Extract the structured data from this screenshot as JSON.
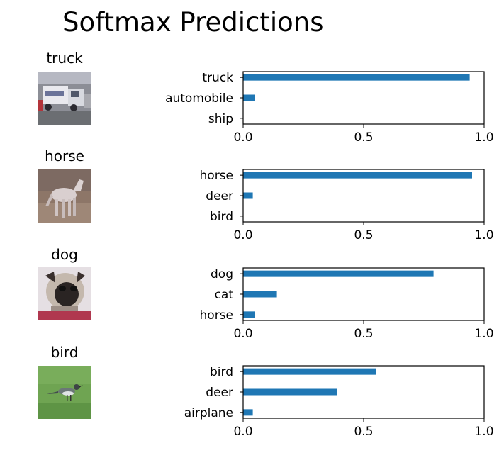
{
  "title": "Softmax Predictions",
  "colors": {
    "bar": "#1f77b4",
    "axis": "#000000"
  },
  "rows": [
    {
      "label": "truck",
      "image_icon": "truck-photo-thumbnail"
    },
    {
      "label": "horse",
      "image_icon": "horse-photo-thumbnail"
    },
    {
      "label": "dog",
      "image_icon": "dog-photo-thumbnail"
    },
    {
      "label": "bird",
      "image_icon": "bird-photo-thumbnail"
    }
  ],
  "chart_data": [
    {
      "type": "bar",
      "orientation": "horizontal",
      "categories": [
        "truck",
        "automobile",
        "ship"
      ],
      "values": [
        0.94,
        0.05,
        0.0
      ],
      "xlim": [
        0,
        1
      ],
      "xticks": [
        "0.0",
        "0.5",
        "1.0"
      ]
    },
    {
      "type": "bar",
      "orientation": "horizontal",
      "categories": [
        "horse",
        "deer",
        "bird"
      ],
      "values": [
        0.95,
        0.04,
        0.0
      ],
      "xlim": [
        0,
        1
      ],
      "xticks": [
        "0.0",
        "0.5",
        "1.0"
      ]
    },
    {
      "type": "bar",
      "orientation": "horizontal",
      "categories": [
        "dog",
        "cat",
        "horse"
      ],
      "values": [
        0.79,
        0.14,
        0.05
      ],
      "xlim": [
        0,
        1
      ],
      "xticks": [
        "0.0",
        "0.5",
        "1.0"
      ]
    },
    {
      "type": "bar",
      "orientation": "horizontal",
      "categories": [
        "bird",
        "deer",
        "airplane"
      ],
      "values": [
        0.55,
        0.39,
        0.04
      ],
      "xlim": [
        0,
        1
      ],
      "xticks": [
        "0.0",
        "0.5",
        "1.0"
      ]
    }
  ]
}
